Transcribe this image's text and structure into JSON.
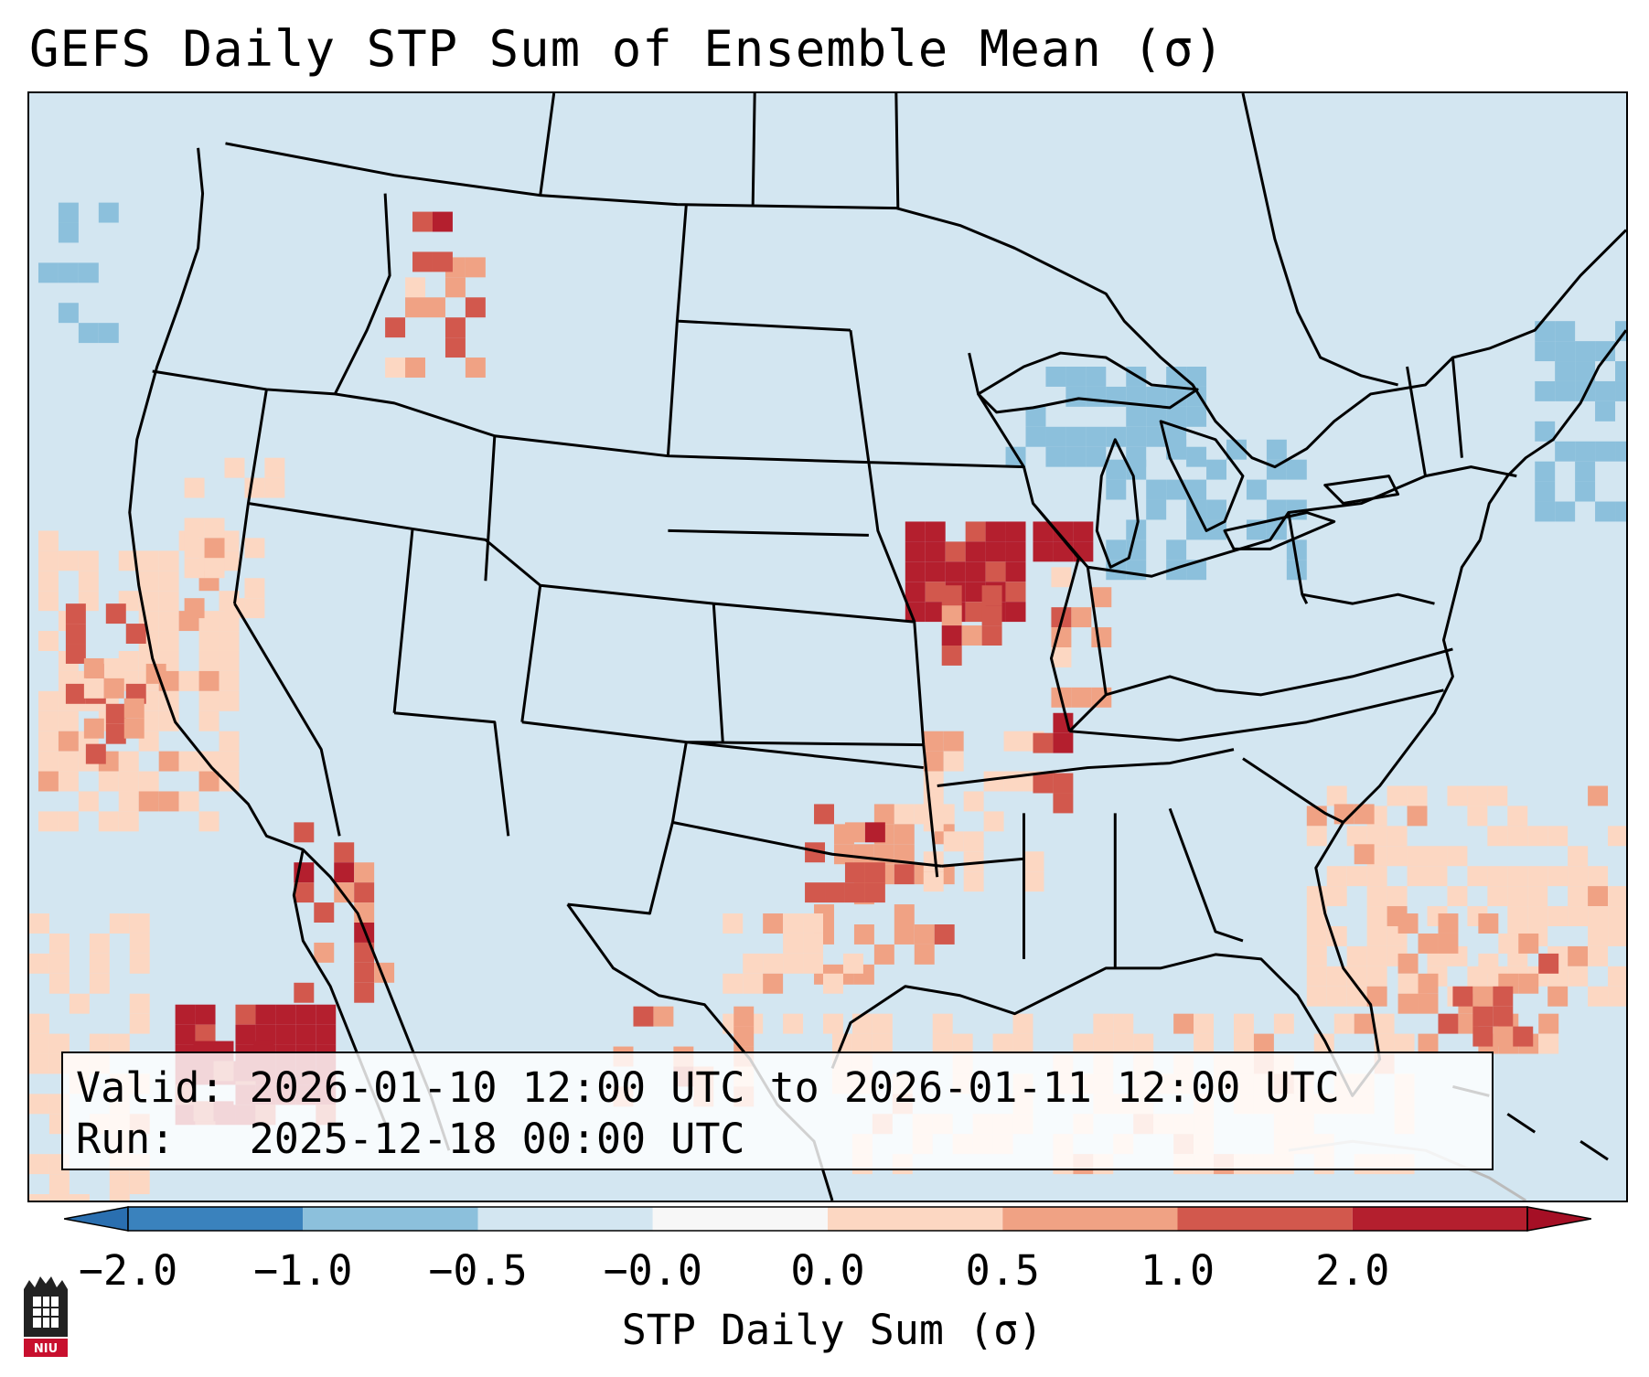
{
  "title": "GEFS Daily STP Sum of Ensemble Mean (σ)",
  "info": {
    "valid_label": "Valid:",
    "valid_value": "2026-01-10 12:00 UTC to 2026-01-11 12:00 UTC",
    "run_label": "Run:",
    "run_value": "2025-12-18 00:00 UTC"
  },
  "colorbar": {
    "label": "STP Daily Sum (σ)",
    "ticks": [
      "−2.0",
      "−1.0",
      "−0.5",
      "−0.0",
      "0.0",
      "0.5",
      "1.0",
      "2.0"
    ],
    "colors": [
      "#3a82bd",
      "#8cc0dc",
      "#d3e6f1",
      "#f7f7f7",
      "#fcd7c2",
      "#f0a284",
      "#d2584d",
      "#b41f2e"
    ],
    "under_color": "#2a6fb0",
    "over_color": "#a50f25"
  },
  "logo": {
    "text": "NIU"
  },
  "map": {
    "ocean_color": "#d3e6f1",
    "region": "Continental United States",
    "anomaly_patches": [
      {
        "area": "Iowa / Northern Illinois",
        "value": 2.0
      },
      {
        "area": "Eastern Pacific off Baja",
        "value": 2.0
      },
      {
        "area": "Texas / Oklahoma Red River",
        "value": 1.0
      },
      {
        "area": "Gulf of Mexico",
        "value": 0.5
      },
      {
        "area": "Western Atlantic",
        "value": 0.5
      },
      {
        "area": "Great Lakes",
        "value": -1.0
      },
      {
        "area": "Gulf of Maine",
        "value": -1.0
      }
    ]
  }
}
